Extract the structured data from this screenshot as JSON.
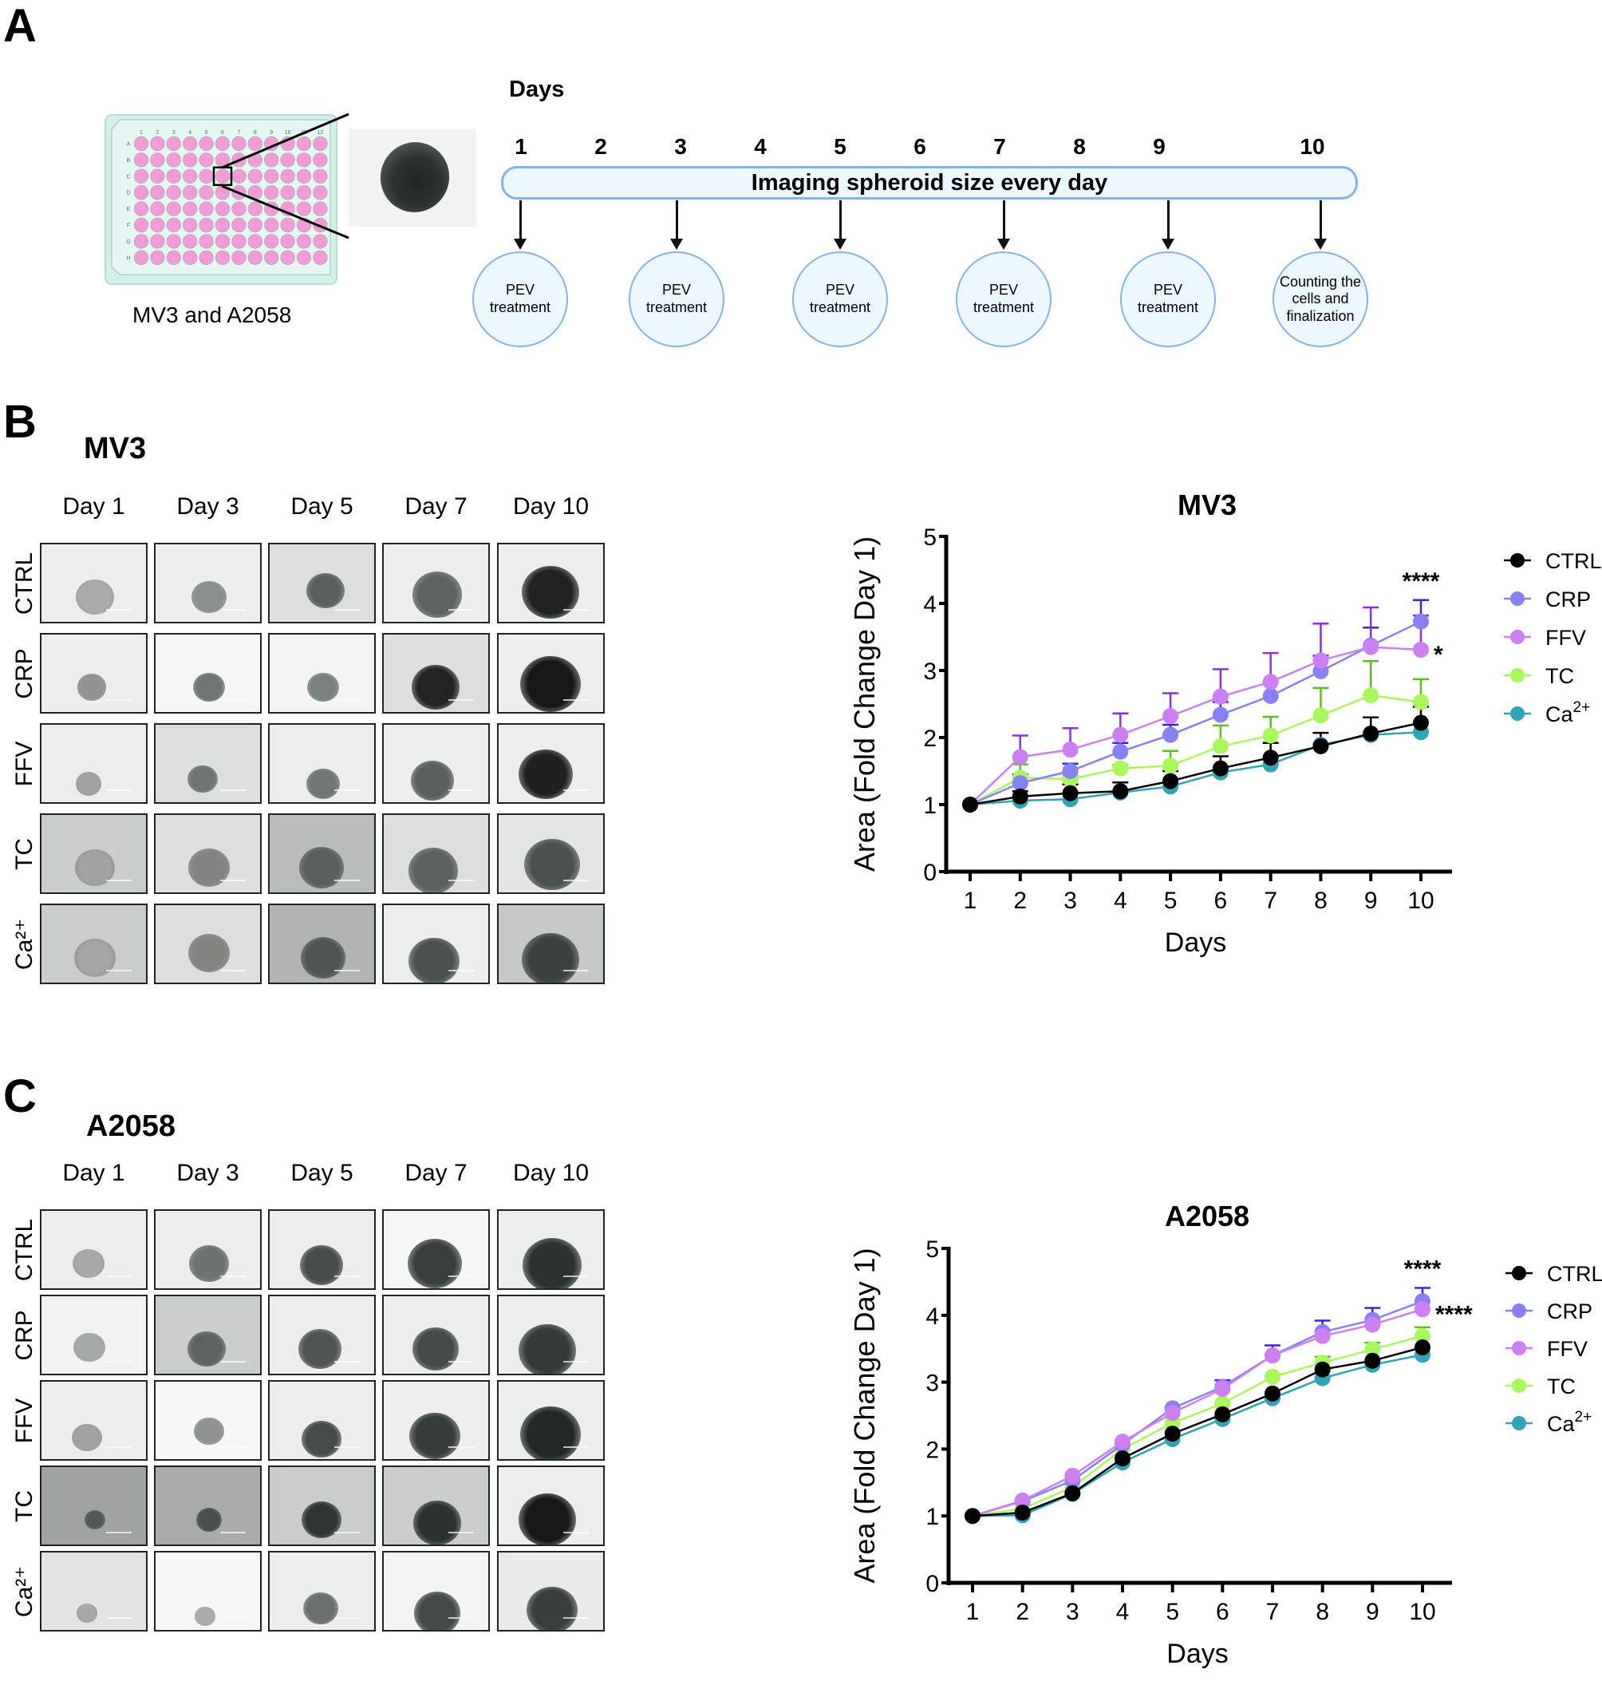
{
  "panels": {
    "a": {
      "letter": "A",
      "plate_label": "MV3 and A2058",
      "plate": {
        "columns": [
          "1",
          "2",
          "3",
          "4",
          "5",
          "6",
          "7",
          "8",
          "9",
          "10",
          "11",
          "12"
        ],
        "rows": [
          "A",
          "B",
          "C",
          "D",
          "E",
          "F",
          "G",
          "H"
        ],
        "well_color": "#f59ad6",
        "highlighted_well": "C6"
      },
      "timeline": {
        "header": "Days",
        "days": [
          "1",
          "2",
          "3",
          "4",
          "5",
          "6",
          "7",
          "8",
          "9",
          "10"
        ],
        "bar_label": "Imaging spheroid size every day",
        "events": [
          {
            "day": "1",
            "label": "PEV\ntreatment"
          },
          {
            "day": "3",
            "label": "PEV\ntreatment"
          },
          {
            "day": "5",
            "label": "PEV\ntreatment"
          },
          {
            "day": "7",
            "label": "PEV\ntreatment"
          },
          {
            "day": "9",
            "label": "PEV\ntreatment"
          },
          {
            "day": "10",
            "label": "Counting the\ncells and\nfinalization"
          }
        ]
      }
    },
    "b": {
      "letter": "B",
      "cell_line": "MV3",
      "columns": [
        "Day 1",
        "Day 3",
        "Day 5",
        "Day 7",
        "Day 10"
      ],
      "rows": [
        "CTRL",
        "CRP",
        "FFV",
        "TC",
        "Ca²⁺"
      ]
    },
    "c": {
      "letter": "C",
      "cell_line": "A2058",
      "columns": [
        "Day 1",
        "Day 3",
        "Day 5",
        "Day 7",
        "Day 10"
      ],
      "rows": [
        "CTRL",
        "CRP",
        "FFV",
        "TC",
        "Ca²⁺"
      ]
    }
  },
  "legend": [
    {
      "name": "CTRL",
      "color": "#000000",
      "err_color": "#000000"
    },
    {
      "name": "CRP",
      "color": "#8a80f6",
      "err_color": "#3a22e6"
    },
    {
      "name": "FFV",
      "color": "#cd80f2",
      "err_color": "#8b2fe6"
    },
    {
      "name": "TC",
      "color": "#abf75e",
      "err_color": "#5cbf20"
    },
    {
      "name": "Ca2+",
      "color": "#2fa4b6",
      "err_color": "#1d7f8f"
    }
  ],
  "chart_data": [
    {
      "type": "line",
      "title": "MV3",
      "xlabel": "Days",
      "ylabel": "Area (Fold Change Day 1)",
      "x": [
        1,
        2,
        3,
        4,
        5,
        6,
        7,
        8,
        9,
        10
      ],
      "ylim": [
        0,
        5
      ],
      "yticks": [
        0,
        1,
        2,
        3,
        4,
        5
      ],
      "grid": false,
      "legend_position": "right",
      "series": [
        {
          "name": "CTRL",
          "values": [
            1.0,
            1.12,
            1.17,
            1.2,
            1.35,
            1.54,
            1.7,
            1.87,
            2.06,
            2.22
          ],
          "err": [
            0,
            0.08,
            0.13,
            0.13,
            0.15,
            0.18,
            0.22,
            0.2,
            0.24,
            0.24
          ]
        },
        {
          "name": "CRP",
          "values": [
            1.0,
            1.32,
            1.5,
            1.79,
            2.04,
            2.34,
            2.62,
            2.99,
            3.37,
            3.73
          ],
          "err": [
            0,
            0.13,
            0.11,
            0.13,
            0.15,
            0.19,
            0.21,
            0.23,
            0.27,
            0.32
          ]
        },
        {
          "name": "FFV",
          "values": [
            1.0,
            1.71,
            1.82,
            2.04,
            2.32,
            2.61,
            2.83,
            3.15,
            3.35,
            3.31
          ],
          "err": [
            0,
            0.32,
            0.32,
            0.32,
            0.34,
            0.41,
            0.43,
            0.55,
            0.59,
            0.51
          ]
        },
        {
          "name": "TC",
          "values": [
            1.0,
            1.4,
            1.38,
            1.54,
            1.58,
            1.87,
            2.03,
            2.33,
            2.63,
            2.53
          ],
          "err": [
            0,
            0.2,
            0.05,
            0.05,
            0.22,
            0.31,
            0.28,
            0.41,
            0.51,
            0.34
          ]
        },
        {
          "name": "Ca2+",
          "values": [
            1.0,
            1.06,
            1.08,
            1.18,
            1.27,
            1.48,
            1.6,
            1.89,
            2.04,
            2.08
          ],
          "err": [
            0,
            0,
            0,
            0,
            0,
            0,
            0,
            0,
            0,
            0
          ]
        }
      ],
      "annotations": [
        {
          "text": "****",
          "series": "CRP",
          "x": 10
        },
        {
          "text": "*",
          "series": "FFV",
          "x": 10
        }
      ]
    },
    {
      "type": "line",
      "title": "A2058",
      "xlabel": "Days",
      "ylabel": "Area (Fold Change Day 1)",
      "x": [
        1,
        2,
        3,
        4,
        5,
        6,
        7,
        8,
        9,
        10
      ],
      "ylim": [
        0,
        5
      ],
      "yticks": [
        0,
        1,
        2,
        3,
        4,
        5
      ],
      "grid": false,
      "legend_position": "right",
      "series": [
        {
          "name": "CTRL",
          "values": [
            1.0,
            1.05,
            1.34,
            1.86,
            2.23,
            2.52,
            2.83,
            3.19,
            3.32,
            3.52
          ],
          "err": [
            0,
            0,
            0,
            0,
            0,
            0,
            0,
            0,
            0,
            0
          ]
        },
        {
          "name": "CRP",
          "values": [
            1.0,
            1.22,
            1.53,
            2.07,
            2.61,
            2.93,
            3.4,
            3.75,
            3.93,
            4.21
          ],
          "err": [
            0,
            0,
            0,
            0,
            0,
            0.1,
            0.15,
            0.17,
            0.18,
            0.2
          ]
        },
        {
          "name": "FFV",
          "values": [
            1.0,
            1.23,
            1.6,
            2.11,
            2.54,
            2.9,
            3.4,
            3.69,
            3.86,
            4.09
          ],
          "err": [
            0,
            0,
            0,
            0,
            0,
            0,
            0,
            0,
            0,
            0
          ]
        },
        {
          "name": "TC",
          "values": [
            1.0,
            1.11,
            1.43,
            2.0,
            2.39,
            2.68,
            3.08,
            3.29,
            3.49,
            3.69
          ],
          "err": [
            0,
            0,
            0,
            0,
            0,
            0,
            0,
            0.09,
            0.1,
            0.13
          ]
        },
        {
          "name": "Ca2+",
          "values": [
            1.0,
            1.01,
            1.33,
            1.8,
            2.15,
            2.45,
            2.76,
            3.06,
            3.26,
            3.41
          ],
          "err": [
            0,
            0,
            0,
            0,
            0,
            0,
            0,
            0,
            0,
            0
          ]
        }
      ],
      "annotations": [
        {
          "text": "****",
          "series": "CRP",
          "x": 10
        },
        {
          "text": "****",
          "series": "FFV",
          "x": 10
        }
      ]
    }
  ]
}
